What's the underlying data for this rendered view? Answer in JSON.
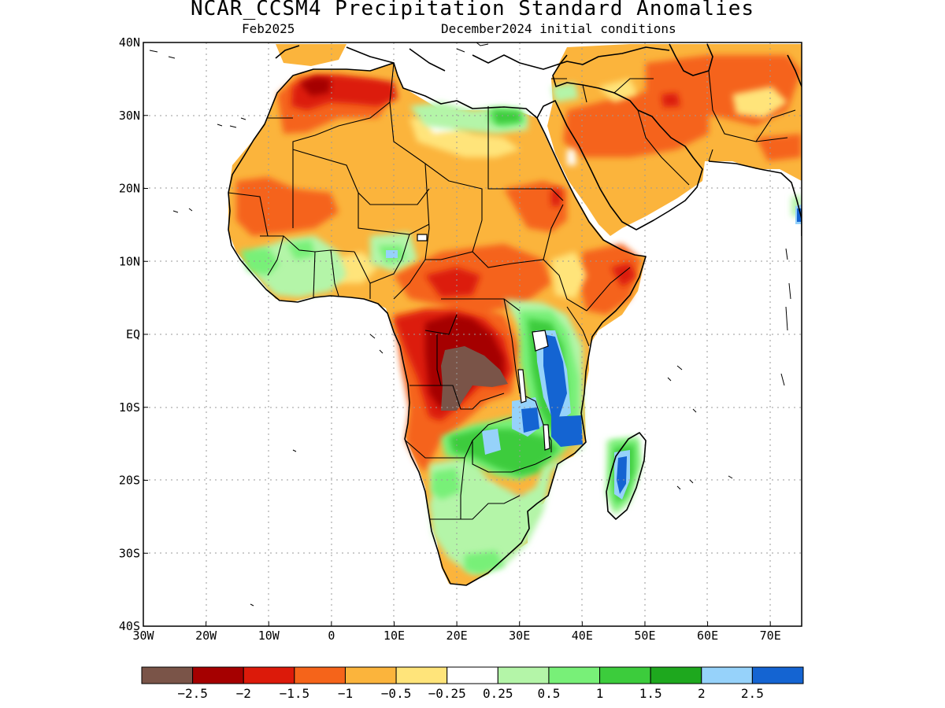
{
  "title": "NCAR_CCSM4 Precipitation Standard Anomalies",
  "subtitle_left": "Feb2025",
  "subtitle_right": "December2024 initial conditions",
  "map": {
    "lon_range": [
      -30,
      75
    ],
    "lat_range": [
      -40,
      40
    ],
    "lon_ticks": [
      {
        "value": -30,
        "label": "30W"
      },
      {
        "value": -20,
        "label": "20W"
      },
      {
        "value": -10,
        "label": "10W"
      },
      {
        "value": 0,
        "label": "0"
      },
      {
        "value": 10,
        "label": "10E"
      },
      {
        "value": 20,
        "label": "20E"
      },
      {
        "value": 30,
        "label": "30E"
      },
      {
        "value": 40,
        "label": "40E"
      },
      {
        "value": 50,
        "label": "50E"
      },
      {
        "value": 60,
        "label": "60E"
      },
      {
        "value": 70,
        "label": "70E"
      }
    ],
    "lat_ticks": [
      {
        "value": 40,
        "label": "40N"
      },
      {
        "value": 30,
        "label": "30N"
      },
      {
        "value": 20,
        "label": "20N"
      },
      {
        "value": 10,
        "label": "10N"
      },
      {
        "value": 0,
        "label": "EQ"
      },
      {
        "value": -10,
        "label": "10S"
      },
      {
        "value": -20,
        "label": "20S"
      },
      {
        "value": -30,
        "label": "30S"
      },
      {
        "value": -40,
        "label": "40S"
      }
    ],
    "gridlines": "dotted"
  },
  "colorbar": {
    "colors": [
      "#7a5448",
      "#a50000",
      "#dc1a0a",
      "#f5641a",
      "#fbb43c",
      "#ffe47a",
      "#ffffff",
      "#b4f5a8",
      "#78f078",
      "#3ccc3c",
      "#1ea81e",
      "#96d2fa",
      "#1464d2"
    ],
    "labels": [
      "−2.5",
      "−2",
      "−1.5",
      "−1",
      "−0.5",
      "−0.25",
      "0.25",
      "0.5",
      "1",
      "1.5",
      "2",
      "2.5"
    ]
  }
}
